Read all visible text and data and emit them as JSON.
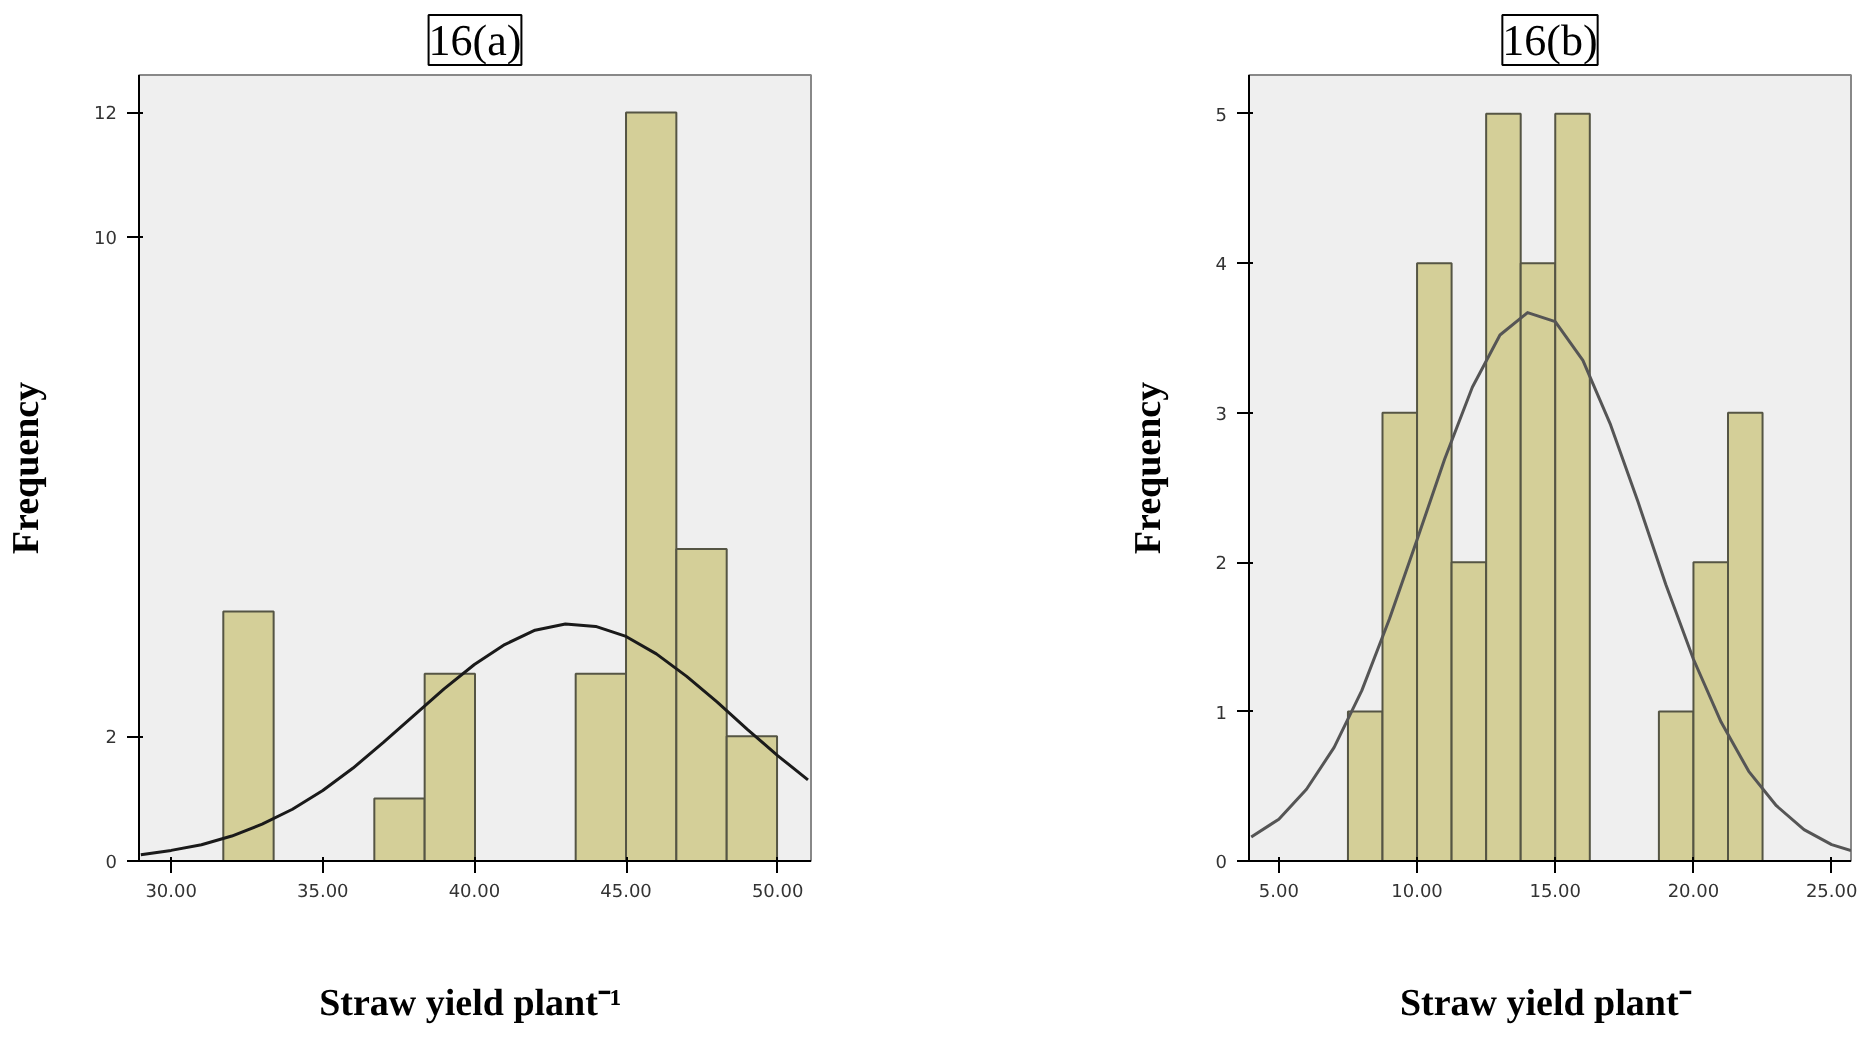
{
  "chart_data": [
    {
      "type": "histogram",
      "title": "16(a)",
      "xlabel": "Straw yield  plant⁻¹",
      "ylabel": "Frequency",
      "color": "#d4cf98",
      "bins": [
        31.72,
        33.38,
        35.04,
        36.7,
        38.36,
        40.02,
        41.68,
        43.34,
        45.0,
        46.66,
        48.32,
        49.98
      ],
      "values": [
        4,
        0,
        0,
        1,
        3,
        0,
        0,
        3,
        12,
        5,
        2
      ],
      "series": [
        {
          "type": "line",
          "color": "#1a1a1a",
          "x": [
            29,
            30,
            31,
            32,
            33,
            34,
            35,
            36,
            37,
            38,
            39,
            40,
            41,
            42,
            43,
            44,
            45,
            46,
            47,
            48,
            49,
            50,
            51
          ],
          "values": [
            0.1,
            0.17,
            0.26,
            0.4,
            0.59,
            0.83,
            1.13,
            1.49,
            1.9,
            2.33,
            2.76,
            3.15,
            3.47,
            3.7,
            3.8,
            3.76,
            3.6,
            3.32,
            2.96,
            2.55,
            2.11,
            1.69,
            1.3
          ]
        }
      ],
      "xlim": [
        28.94,
        51.1
      ],
      "ylim": [
        0,
        12.6
      ],
      "xticks": [
        {
          "value": 30,
          "label": "30.00"
        },
        {
          "value": 35,
          "label": "35.00"
        },
        {
          "value": 40,
          "label": "40.00"
        },
        {
          "value": 45,
          "label": "45.00"
        },
        {
          "value": 50,
          "label": "50.00"
        }
      ],
      "yticks": [
        0,
        2,
        10,
        12
      ]
    },
    {
      "type": "histogram",
      "title": "16(b)",
      "xlabel": "Straw yield  plant⁻",
      "ylabel": "Frequency",
      "color": "#d4cf98",
      "bins": [
        7.5,
        8.75,
        10.0,
        11.25,
        12.5,
        13.75,
        15.0,
        16.25,
        17.5,
        18.75,
        20.0,
        21.25,
        22.5
      ],
      "values": [
        1,
        3,
        4,
        2,
        5,
        4,
        5,
        0,
        0,
        1,
        2,
        3
      ],
      "series": [
        {
          "type": "line",
          "color": "#555555",
          "x": [
            4,
            5,
            6,
            7,
            8,
            9,
            10,
            11,
            12,
            13,
            14,
            15,
            16,
            17,
            18,
            19,
            20,
            21,
            22,
            23,
            24,
            25,
            25.7
          ],
          "values": [
            0.16,
            0.28,
            0.48,
            0.76,
            1.14,
            1.62,
            2.15,
            2.69,
            3.17,
            3.52,
            3.67,
            3.61,
            3.35,
            2.92,
            2.4,
            1.85,
            1.35,
            0.93,
            0.6,
            0.37,
            0.21,
            0.11,
            0.07
          ]
        }
      ],
      "xlim": [
        3.92,
        25.7
      ],
      "ylim": [
        0,
        5.26
      ],
      "xticks": [
        {
          "value": 5,
          "label": "5.00"
        },
        {
          "value": 10,
          "label": "10.00"
        },
        {
          "value": 15,
          "label": "15.00"
        },
        {
          "value": 20,
          "label": "20.00"
        },
        {
          "value": 25,
          "label": "25.00"
        }
      ],
      "yticks": [
        0,
        1,
        2,
        3,
        4,
        5
      ]
    }
  ]
}
